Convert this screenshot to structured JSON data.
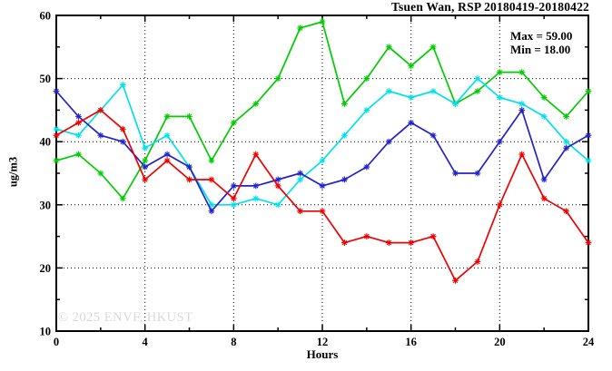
{
  "window": {
    "title": "Tsuen Wan, RSP 20180419-20180422"
  },
  "legend": {
    "max_label": "Max = 59.00",
    "min_label": "Min = 18.00"
  },
  "watermark": "© 2025 ENVF, HKUST",
  "axes": {
    "x_label": "Hours",
    "y_label": "ug/m3",
    "x_tick_labels": [
      "0",
      "4",
      "8",
      "12",
      "16",
      "20",
      "24"
    ],
    "y_tick_labels": [
      "10",
      "20",
      "30",
      "40",
      "50",
      "60"
    ]
  },
  "colors": {
    "green": "#00cc00",
    "cyan": "#00e1ea",
    "blue": "#2222cc",
    "red": "#ee0000",
    "grid": "#000000",
    "frame": "#000000",
    "watermark": "#d9d9d9"
  },
  "chart_data": {
    "type": "line",
    "title": "Tsuen Wan, RSP 20180419-20180422",
    "xlabel": "Hours",
    "ylabel": "ug/m3",
    "xlim": [
      0,
      24
    ],
    "ylim": [
      10,
      60
    ],
    "grid": "dotted",
    "legend_position": "top-right-annotation",
    "annotations": [
      "Max = 59.00",
      "Min = 18.00"
    ],
    "stats": {
      "max": 59.0,
      "min": 18.0
    },
    "x_major_ticks": [
      0,
      4,
      8,
      12,
      16,
      20,
      24
    ],
    "x_minor_ticks": [
      2,
      6,
      10,
      14,
      18,
      22
    ],
    "y_major_ticks": [
      10,
      20,
      30,
      40,
      50,
      60
    ],
    "y_minor_ticks": [
      15,
      25,
      35,
      45,
      55
    ],
    "x_gridlines": [
      4,
      8,
      12,
      16,
      20
    ],
    "y_gridlines": [
      20,
      30,
      40,
      50
    ],
    "x": [
      0,
      1,
      2,
      3,
      4,
      5,
      6,
      7,
      8,
      9,
      10,
      11,
      12,
      13,
      14,
      15,
      16,
      17,
      18,
      19,
      20,
      21,
      22,
      23,
      24
    ],
    "series": [
      {
        "name": "green-line",
        "color": "#00cc00",
        "marker": "star",
        "values": [
          37,
          38,
          35,
          31,
          37,
          44,
          44,
          37,
          43,
          46,
          50,
          58,
          59,
          46,
          50,
          55,
          52,
          55,
          46,
          48,
          51,
          51,
          47,
          44,
          48
        ]
      },
      {
        "name": "cyan-line",
        "color": "#00e1ea",
        "marker": "star",
        "values": [
          42,
          41,
          45,
          49,
          39,
          41,
          36,
          30,
          30,
          31,
          30,
          34,
          37,
          41,
          45,
          48,
          47,
          48,
          46,
          50,
          47,
          46,
          44,
          40,
          37
        ]
      },
      {
        "name": "blue-line",
        "color": "#2222cc",
        "marker": "star",
        "values": [
          48,
          44,
          41,
          40,
          36,
          38,
          36,
          29,
          33,
          33,
          34,
          35,
          33,
          34,
          36,
          40,
          43,
          41,
          35,
          35,
          40,
          45,
          34,
          39,
          41
        ]
      },
      {
        "name": "red-line",
        "color": "#ee0000",
        "marker": "star",
        "values": [
          41,
          43,
          45,
          42,
          34,
          37,
          34,
          34,
          31,
          38,
          33,
          29,
          29,
          24,
          25,
          24,
          24,
          25,
          18,
          21,
          30,
          38,
          31,
          29,
          24
        ]
      }
    ]
  }
}
